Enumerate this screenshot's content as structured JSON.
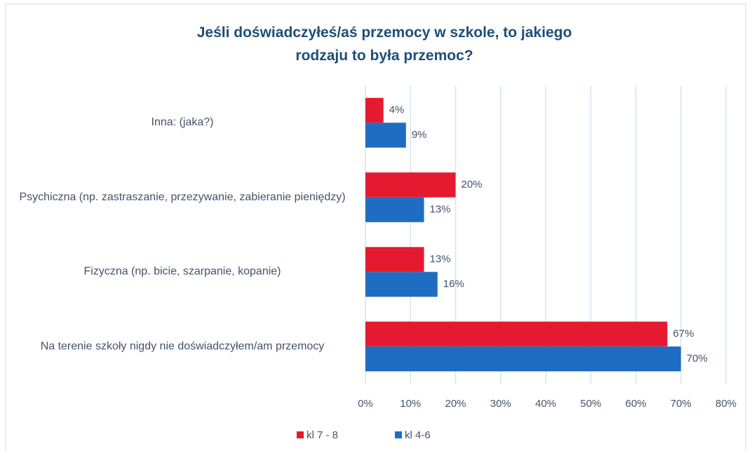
{
  "chart_data": {
    "type": "hbar",
    "title": "Jeśli doświadczyłeś/aś przemocy w szkole, to jakiego rodzaju to była przemoc?",
    "categories": [
      "Inna: (jaka?)",
      "Psychiczna (np. zastraszanie, przezywanie, zabieranie pieniędzy)",
      "Fizyczna (np. bicie, szarpanie, kopanie)",
      "Na terenie szkoły nigdy nie doświadczyłem/am przemocy"
    ],
    "series": [
      {
        "name": "kl 7 - 8",
        "color": "#e51a30",
        "values": [
          4,
          20,
          13,
          67
        ],
        "value_labels": [
          "4%",
          "20%",
          "13%",
          "67%"
        ]
      },
      {
        "name": "kl 4-6",
        "color": "#1f6dc2",
        "values": [
          9,
          13,
          16,
          70
        ],
        "value_labels": [
          "9%",
          "13%",
          "16%",
          "70%"
        ]
      }
    ],
    "xlim": [
      0,
      80
    ],
    "xticks": [
      {
        "value": 0,
        "label": "0%"
      },
      {
        "value": 10,
        "label": "10%"
      },
      {
        "value": 20,
        "label": "20%"
      },
      {
        "value": 30,
        "label": "30%"
      },
      {
        "value": 40,
        "label": "40%"
      },
      {
        "value": 50,
        "label": "50%"
      },
      {
        "value": 60,
        "label": "60%"
      },
      {
        "value": 70,
        "label": "70%"
      },
      {
        "value": 80,
        "label": "80%"
      }
    ],
    "grid": true,
    "legend": "bottom"
  }
}
